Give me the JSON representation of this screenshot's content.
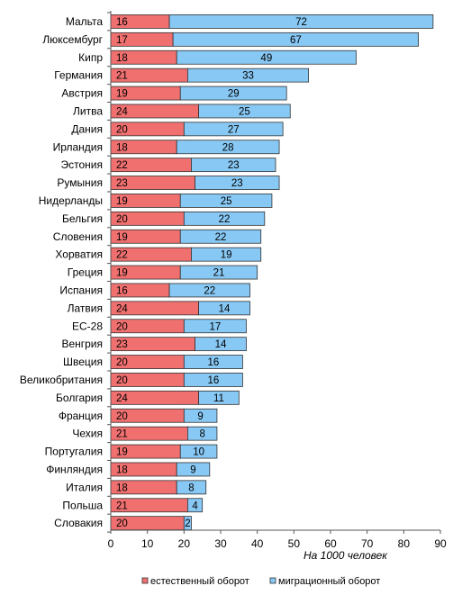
{
  "chart_data": {
    "type": "bar",
    "orientation": "horizontal",
    "stacked": true,
    "categories": [
      "Мальта",
      "Люксембург",
      "Кипр",
      "Германия",
      "Австрия",
      "Литва",
      "Дания",
      "Ирландия",
      "Эстония",
      "Румыния",
      "Нидерланды",
      "Бельгия",
      "Словения",
      "Хорватия",
      "Греция",
      "Испания",
      "Латвия",
      "ЕС-28",
      "Венгрия",
      "Швеция",
      "Великобритания",
      "Болгария",
      "Франция",
      "Чехия",
      "Португалия",
      "Финляндия",
      "Италия",
      "Польша",
      "Словакия"
    ],
    "series": [
      {
        "name": "естественный оборот",
        "color": "#f07070",
        "values": [
          16,
          17,
          18,
          21,
          19,
          24,
          20,
          18,
          22,
          23,
          19,
          20,
          19,
          22,
          19,
          16,
          24,
          20,
          23,
          20,
          20,
          24,
          20,
          21,
          19,
          18,
          18,
          21,
          20
        ]
      },
      {
        "name": "миграционный оборот",
        "color": "#88c8f4",
        "values": [
          72,
          67,
          49,
          33,
          29,
          25,
          27,
          28,
          23,
          23,
          25,
          22,
          22,
          19,
          21,
          22,
          14,
          17,
          14,
          16,
          16,
          11,
          9,
          8,
          10,
          9,
          8,
          4,
          2
        ]
      }
    ],
    "xlabel": "На 1000 человек",
    "xlim": [
      0,
      90
    ],
    "xticks": [
      0,
      10,
      20,
      30,
      40,
      50,
      60,
      70,
      80,
      90
    ],
    "grid": false,
    "legend_position": "bottom"
  }
}
